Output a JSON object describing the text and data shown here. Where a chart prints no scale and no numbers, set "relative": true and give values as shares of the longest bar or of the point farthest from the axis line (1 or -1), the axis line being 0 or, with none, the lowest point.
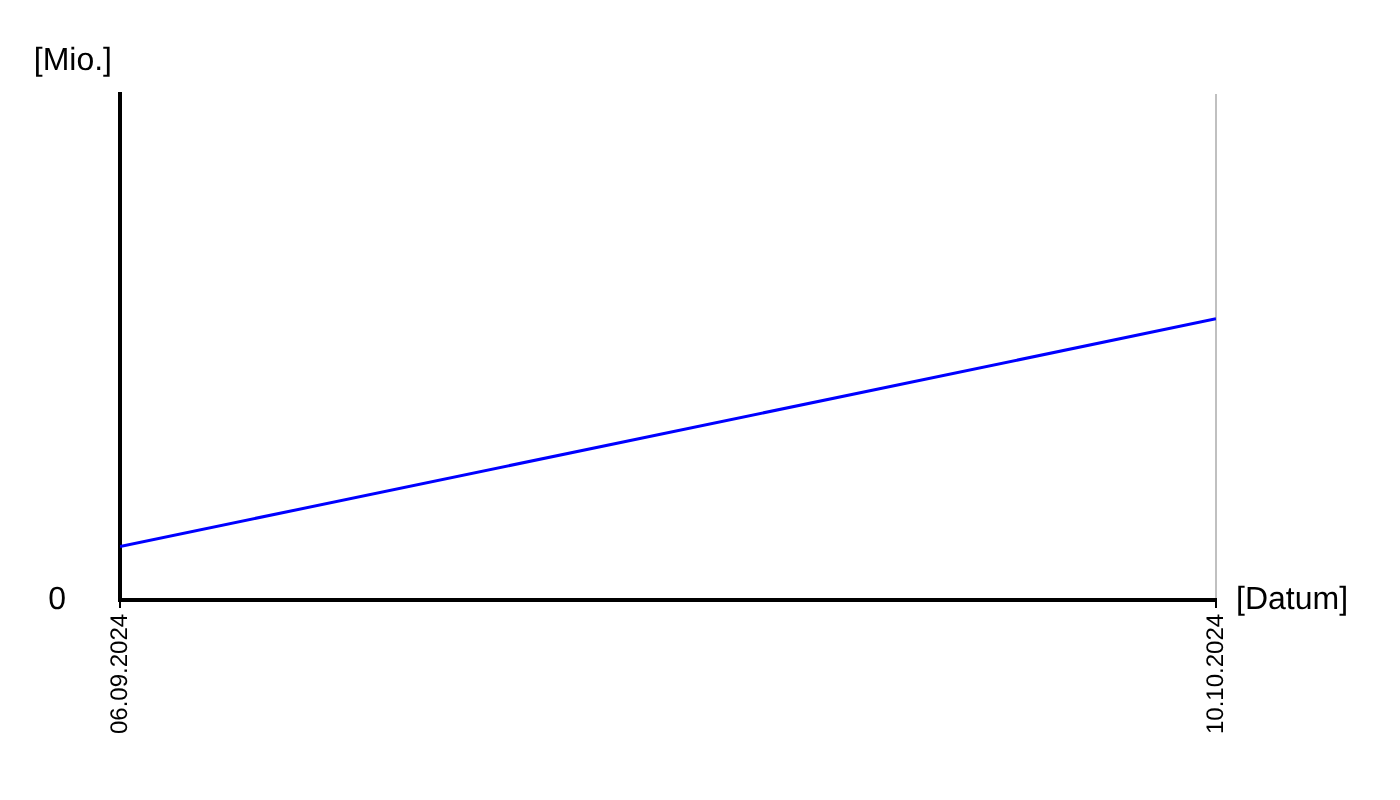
{
  "chart_data": {
    "type": "line",
    "relative": true,
    "xlabel": "[Datum]",
    "x": [
      "2024-09-06",
      "2024-10-10"
    ],
    "xticks": [
      {
        "value": "2024-09-06",
        "label": "06.09.2024"
      },
      {
        "value": "2024-10-10",
        "label": "10.10.2024"
      }
    ],
    "xlim": [
      "2024-09-06",
      "2024-10-10"
    ],
    "annotations": [
      "0",
      "[Mio.]"
    ],
    "series": [
      {
        "color": "#0000ff",
        "values": [
          0.19,
          1
        ]
      }
    ],
    "grid": "x",
    "legend": false,
    "marker": "none",
    "line_style": "solid"
  }
}
